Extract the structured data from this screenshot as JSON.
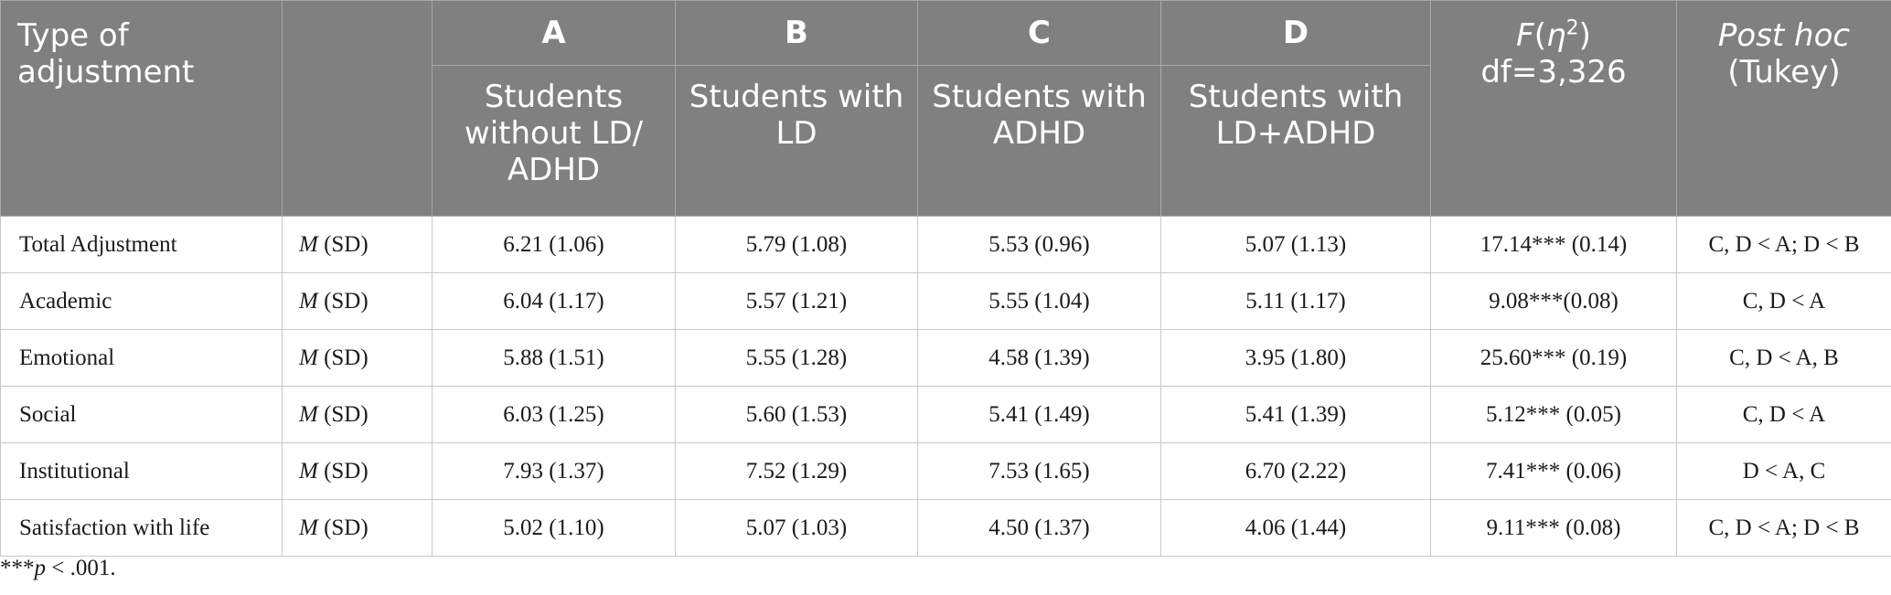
{
  "header": {
    "type_label": "Type of adjustment",
    "groups": [
      {
        "letter": "A",
        "name": "Students without LD/ ADHD"
      },
      {
        "letter": "B",
        "name": "Students with LD"
      },
      {
        "letter": "C",
        "name": "Students with ADHD"
      },
      {
        "letter": "D",
        "name": "Students with LD+ADHD"
      }
    ],
    "f_label_symbol": "F",
    "f_label_eta": "η",
    "f_label_exp": "2",
    "f_df": "df=3,326",
    "posthoc_label": "Post hoc",
    "posthoc_sub": "(Tukey)"
  },
  "rows": [
    {
      "label": "Total Adjustment",
      "stat_m": "M",
      "stat_sd": " (SD)",
      "a": "6.21 (1.06)",
      "b": "5.79 (1.08)",
      "c": "5.53 (0.96)",
      "d": "5.07 (1.13)",
      "f": "17.14*** (0.14)",
      "posthoc": "C, D < A; D < B"
    },
    {
      "label": "Academic",
      "stat_m": "M",
      "stat_sd": " (SD)",
      "a": "6.04 (1.17)",
      "b": "5.57 (1.21)",
      "c": "5.55 (1.04)",
      "d": "5.11 (1.17)",
      "f": "9.08***(0.08)",
      "posthoc": "C, D < A"
    },
    {
      "label": "Emotional",
      "stat_m": "M",
      "stat_sd": " (SD)",
      "a": "5.88 (1.51)",
      "b": "5.55 (1.28)",
      "c": "4.58 (1.39)",
      "d": "3.95 (1.80)",
      "f": "25.60*** (0.19)",
      "posthoc": "C, D < A, B"
    },
    {
      "label": "Social",
      "stat_m": "M",
      "stat_sd": " (SD)",
      "a": "6.03 (1.25)",
      "b": "5.60 (1.53)",
      "c": "5.41 (1.49)",
      "d": "5.41 (1.39)",
      "f": "5.12*** (0.05)",
      "posthoc": "C, D < A"
    },
    {
      "label": "Institutional",
      "stat_m": "M",
      "stat_sd": " (SD)",
      "a": "7.93 (1.37)",
      "b": "7.52 (1.29)",
      "c": "7.53 (1.65)",
      "d": "6.70 (2.22)",
      "f": "7.41*** (0.06)",
      "posthoc": "D < A, C"
    },
    {
      "label": "Satisfaction with life",
      "stat_m": "M",
      "stat_sd": " (SD)",
      "a": "5.02 (1.10)",
      "b": "5.07 (1.03)",
      "c": "4.50 (1.37)",
      "d": "4.06 (1.44)",
      "f": "9.11*** (0.08)",
      "posthoc": "C, D < A; D < B"
    }
  ],
  "footnote": {
    "stars": "***",
    "p": "p",
    "rest": " < .001."
  },
  "colors": {
    "header_bg": "#808080",
    "header_text": "#ffffff",
    "grid": "#c8c8c8"
  }
}
